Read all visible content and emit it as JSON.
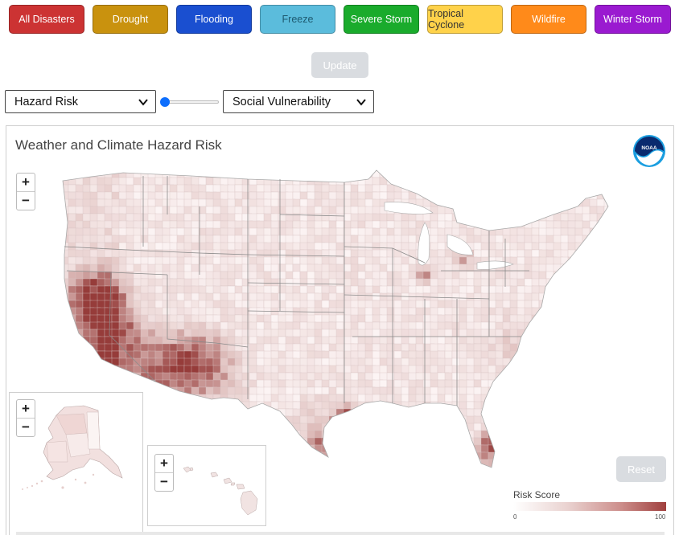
{
  "hazard_buttons": [
    {
      "label": "All Disasters",
      "bg": "#cc3333",
      "fg": "#ffffff"
    },
    {
      "label": "Drought",
      "bg": "#c9920e",
      "fg": "#ffffff"
    },
    {
      "label": "Flooding",
      "bg": "#1a4fd0",
      "fg": "#ffffff"
    },
    {
      "label": "Freeze",
      "bg": "#5bbcdc",
      "fg": "#1e5a70"
    },
    {
      "label": "Severe Storm",
      "bg": "#1aab2c",
      "fg": "#ffffff"
    },
    {
      "label": "Tropical Cyclone",
      "bg": "#ffd24a",
      "fg": "#333333"
    },
    {
      "label": "Wildfire",
      "bg": "#ff8a1a",
      "fg": "#ffffff"
    },
    {
      "label": "Winter Storm",
      "bg": "#9a1ad0",
      "fg": "#ffffff"
    }
  ],
  "update_label": "Update",
  "left_select": {
    "value": "Hazard Risk"
  },
  "right_select": {
    "value": "Social Vulnerability"
  },
  "slider": {
    "value": 0
  },
  "map": {
    "title": "Weather and Climate Hazard Risk",
    "logo_text": "NOAA",
    "zoom_in": "+",
    "zoom_out": "−",
    "reset_label": "Reset",
    "legend": {
      "title": "Risk Score",
      "min": "0",
      "max": "100",
      "color_low": "#ffffff",
      "color_high": "#a0403e"
    }
  }
}
